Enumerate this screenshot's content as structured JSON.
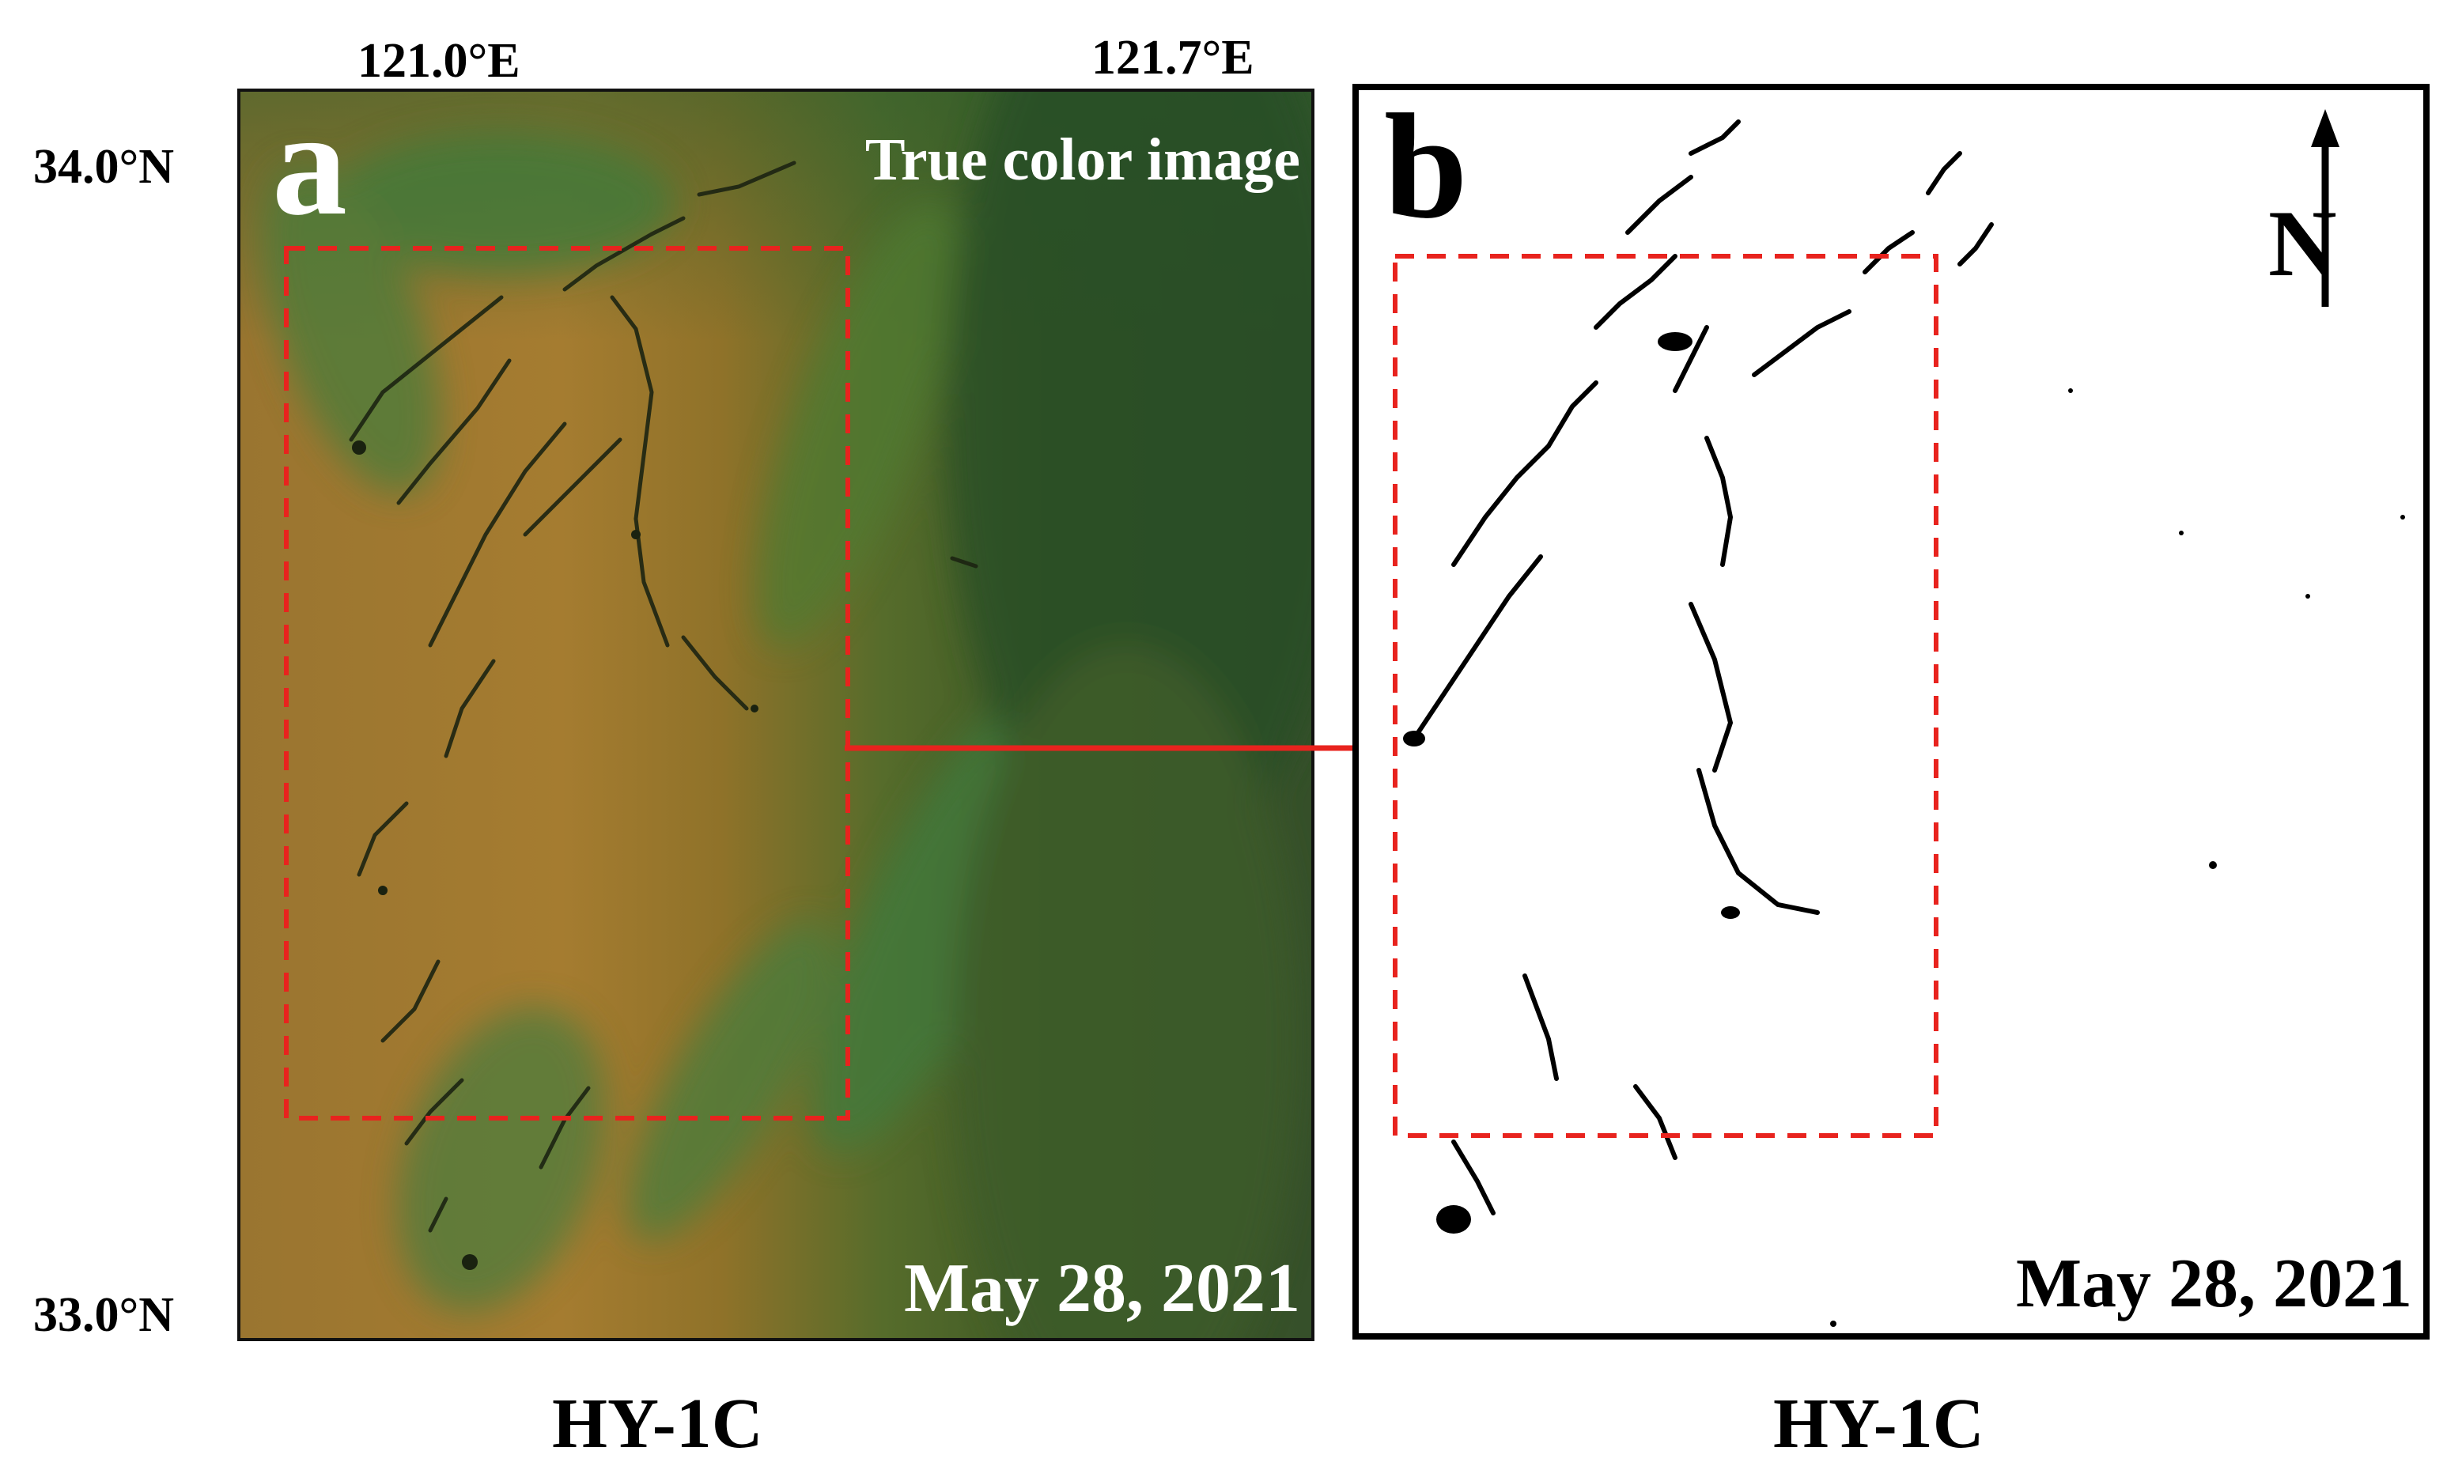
{
  "coordinates": {
    "lon_west": "121.0°E",
    "lon_east": "121.7°E",
    "lat_north": "34.0°N",
    "lat_south": "33.0°N"
  },
  "panel_a": {
    "letter": "a",
    "title": "True color image",
    "date": "May 28, 2021",
    "sensor": "HY-1C"
  },
  "panel_b": {
    "letter": "b",
    "north_label": "N",
    "date": "May 28, 2021",
    "sensor": "HY-1C"
  },
  "colors": {
    "highlight_box": "#e8231e",
    "arrow": "#e8231e",
    "sea_turbid": "#a07a2e",
    "sea_clear": "#2f4f24"
  },
  "icons": [
    "north-arrow-icon",
    "red-connector-arrow-icon"
  ]
}
